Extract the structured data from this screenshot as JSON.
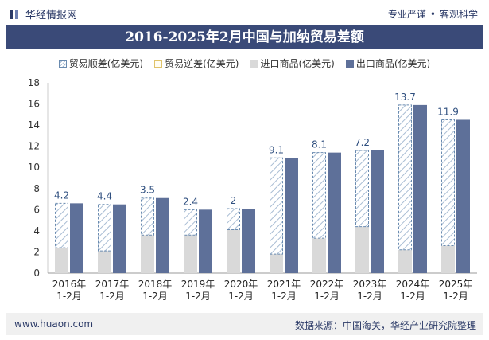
{
  "brand": {
    "name": "华经情报网",
    "tagline_left": "专业严谨",
    "tagline_right": "客观科学"
  },
  "title": "2016-2025年2月中国与加纳贸易差额",
  "footer": {
    "website": "www.huaon.com",
    "source": "数据来源：中国海关，华经产业研究院整理"
  },
  "colors": {
    "export": "#5e7099",
    "import": "#d9d9d9",
    "surplus_stroke": "#6a8bb0",
    "label": "#2f4f7f",
    "title_bg": "#3a4a78"
  },
  "chart_data": {
    "type": "bar",
    "title": "2016-2025年2月中国与加纳贸易差额",
    "categories": [
      "2016年\n1-2月",
      "2017年\n1-2月",
      "2018年\n1-2月",
      "2019年\n1-2月",
      "2020年\n1-2月",
      "2021年\n1-2月",
      "2022年\n1-2月",
      "2023年\n1-2月",
      "2024年\n1-2月",
      "2025年\n1-2月"
    ],
    "series": [
      {
        "name": "贸易顺差(亿美元)",
        "values": [
          4.2,
          4.4,
          3.5,
          2.4,
          2,
          9.1,
          8.1,
          7.2,
          13.7,
          11.9
        ]
      },
      {
        "name": "贸易逆差(亿美元)",
        "values": [
          0,
          0,
          0,
          0,
          0,
          0,
          0,
          0,
          0,
          0
        ]
      },
      {
        "name": "进口商品(亿美元)",
        "values": [
          2.4,
          2.1,
          3.6,
          3.6,
          4.1,
          1.8,
          3.3,
          4.4,
          2.2,
          2.6
        ]
      },
      {
        "name": "出口商品(亿美元)",
        "values": [
          6.6,
          6.5,
          7.1,
          6.0,
          6.1,
          10.9,
          11.4,
          11.6,
          15.9,
          14.5
        ]
      }
    ],
    "data_labels": [
      "4.2",
      "4.4",
      "3.5",
      "2.4",
      "2",
      "9.1",
      "8.1",
      "7.2",
      "13.7",
      "11.9"
    ],
    "ylim": [
      0,
      18
    ],
    "yticks": [
      0,
      2,
      4,
      6,
      8,
      10,
      12,
      14,
      16,
      18
    ],
    "xlabel": "",
    "ylabel": "",
    "legend_position": "top"
  }
}
